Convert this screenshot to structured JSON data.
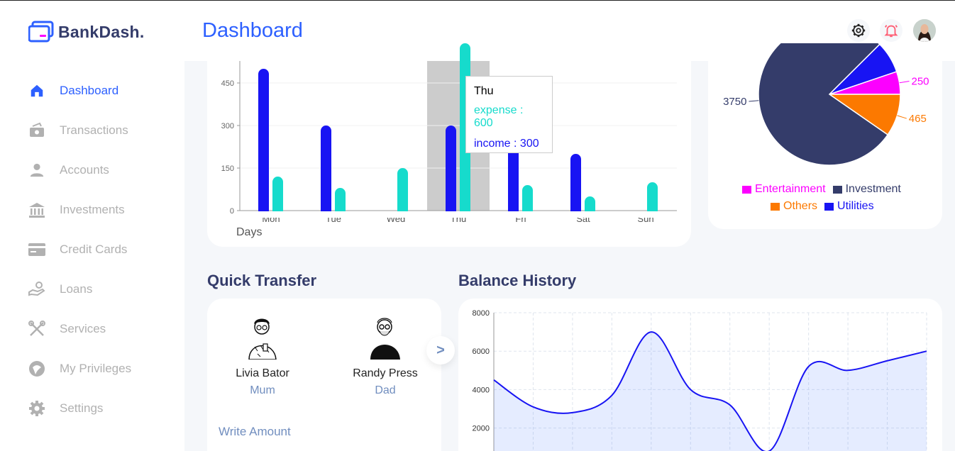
{
  "brand": {
    "name": "BankDash."
  },
  "sidebar": {
    "items": [
      {
        "label": "Dashboard",
        "icon": "home-icon",
        "active": true
      },
      {
        "label": "Transactions",
        "icon": "transactions-icon"
      },
      {
        "label": "Accounts",
        "icon": "user-icon"
      },
      {
        "label": "Investments",
        "icon": "bank-icon"
      },
      {
        "label": "Credit Cards",
        "icon": "credit-card-icon"
      },
      {
        "label": "Loans",
        "icon": "loan-hand-icon"
      },
      {
        "label": "Services",
        "icon": "tools-icon"
      },
      {
        "label": "My Privileges",
        "icon": "privileges-icon"
      },
      {
        "label": "Settings",
        "icon": "gear-icon"
      }
    ]
  },
  "header": {
    "title": "Dashboard"
  },
  "colors": {
    "accent": "#2d60ff",
    "income": "#1814f3",
    "expense": "#16dbcc",
    "nav_inactive": "#b1b1b1",
    "heading": "#343c6a"
  },
  "weekly_activity": {
    "tooltip": {
      "day": "Thu",
      "expense": "expense : 600",
      "income": "income : 300"
    }
  },
  "quick_transfer": {
    "title": "Quick Transfer",
    "contacts": [
      {
        "name": "Livia Bator",
        "role": "Mum"
      },
      {
        "name": "Randy Press",
        "role": "Dad"
      }
    ],
    "next_label": ">",
    "write_amount_label": "Write Amount"
  },
  "balance_history": {
    "title": "Balance History"
  },
  "expense_statistics": {
    "legend": [
      {
        "label": "Entertainment",
        "color": "#fc00ff"
      },
      {
        "label": "Investment",
        "color": "#343c6a"
      },
      {
        "label": "Others",
        "color": "#fc7900"
      },
      {
        "label": "Utilities",
        "color": "#1814f3"
      }
    ]
  },
  "chart_data": [
    {
      "type": "bar",
      "categories": [
        "Mon",
        "Tue",
        "Wed",
        "Thu",
        "Fri",
        "Sat",
        "Sun"
      ],
      "series": [
        {
          "name": "income",
          "values": [
            500,
            300,
            0,
            300,
            300,
            200,
            0
          ]
        },
        {
          "name": "expense",
          "values": [
            120,
            80,
            150,
            600,
            90,
            50,
            100
          ]
        }
      ],
      "xlabel": "Days",
      "ylabel": "",
      "yticks": [
        0,
        150,
        300,
        450
      ],
      "ylim": [
        0,
        525
      ],
      "highlight": "Thu"
    },
    {
      "type": "pie",
      "labels": [
        "Entertainment",
        "Investment",
        "Others",
        "Utilities"
      ],
      "values": [
        250,
        3750,
        465,
        350
      ],
      "visible_labels": [
        "250",
        "3750",
        "465"
      ],
      "colors": [
        "#fc00ff",
        "#343c6a",
        "#fc7900",
        "#1814f3"
      ]
    },
    {
      "type": "area",
      "x": [
        0,
        1,
        2,
        3,
        4,
        5,
        6,
        7,
        8,
        9,
        10,
        11
      ],
      "values": [
        4500,
        3100,
        2800,
        3700,
        7000,
        4000,
        3200,
        800,
        5200,
        5000,
        5500,
        6000
      ],
      "yticks": [
        2000,
        4000,
        6000,
        8000
      ],
      "ylim": [
        0,
        8000
      ],
      "grid": true,
      "color": "#1814f3"
    }
  ]
}
